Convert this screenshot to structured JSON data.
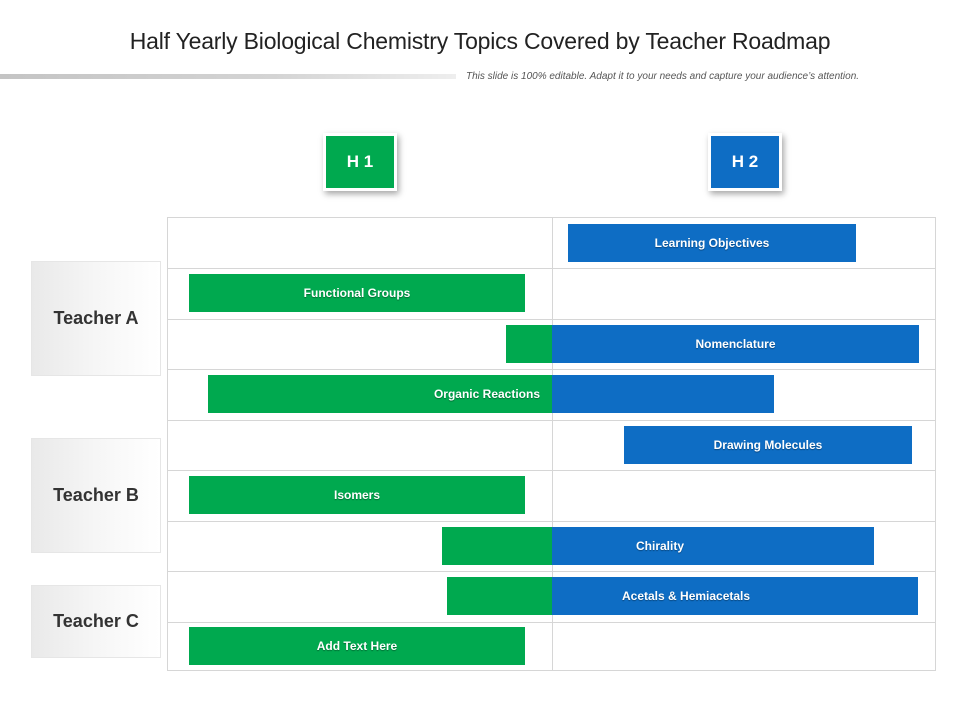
{
  "title": "Half Yearly Biological Chemistry Topics Covered by Teacher Roadmap",
  "subtitle": "This slide is 100% editable. Adapt it to your needs and capture your audience’s attention.",
  "halves": {
    "h1": "H 1",
    "h2": "H 2"
  },
  "colors": {
    "h1": "#00a94f",
    "h2": "#0e6dc4"
  },
  "teachers": [
    {
      "label": "Teacher A"
    },
    {
      "label": "Teacher B"
    },
    {
      "label": "Teacher C"
    }
  ],
  "tasks": [
    {
      "label": "Learning Objectives"
    },
    {
      "label": "Functional Groups"
    },
    {
      "label": "Nomenclature"
    },
    {
      "label": "Organic Reactions"
    },
    {
      "label": "Drawing Molecules"
    },
    {
      "label": "Isomers"
    },
    {
      "label": "Chirality"
    },
    {
      "label": "Acetals & Hemiacetals"
    },
    {
      "label": "Add Text Here"
    }
  ]
}
